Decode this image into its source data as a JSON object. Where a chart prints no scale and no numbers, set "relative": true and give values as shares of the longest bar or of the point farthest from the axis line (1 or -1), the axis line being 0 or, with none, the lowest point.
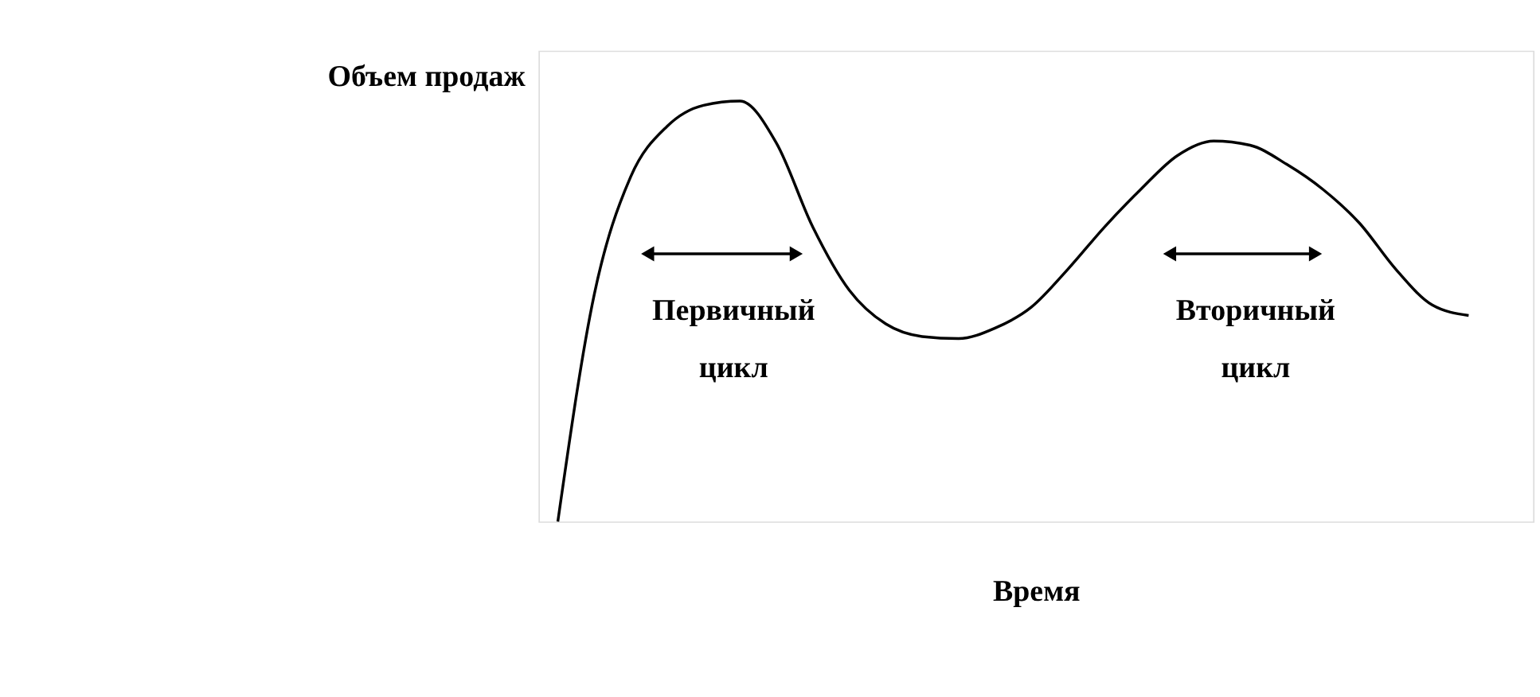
{
  "chart_data": {
    "type": "line",
    "xlabel": "Время",
    "ylabel": "Объем продаж",
    "relative": true,
    "categories": [
      null,
      null,
      null,
      null,
      null,
      null,
      null,
      null,
      null,
      null,
      null,
      null,
      null,
      null,
      null,
      null,
      null,
      null,
      null,
      null,
      null,
      null,
      null,
      null,
      null,
      null
    ],
    "series": [
      {
        "color": "#000000",
        "values": [
          0,
          0.54,
          0.82,
          0.94,
          0.99,
          1.0,
          0.9,
          0.7,
          0.55,
          0.47,
          0.44,
          0.435,
          0.46,
          0.51,
          0.6,
          0.7,
          0.79,
          0.87,
          0.905,
          0.895,
          0.85,
          0.79,
          0.71,
          0.6,
          0.515,
          0.49
        ]
      }
    ],
    "annotations": [
      "Первичный цикл",
      "Вторичный цикл"
    ]
  }
}
